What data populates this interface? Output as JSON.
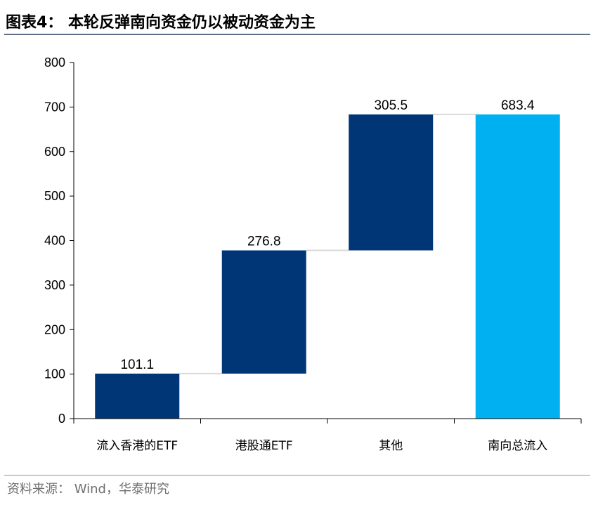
{
  "header": {
    "title": "图表4：  本轮反弹南向资金仍以被动资金为主"
  },
  "footer": {
    "source": "资料来源：  Wind，华泰研究"
  },
  "colors": {
    "dark_bar": "#003676",
    "total_bar": "#00b0f0",
    "connector": "#d9d9d9",
    "axis": "#000000"
  },
  "chart_data": {
    "type": "bar",
    "subtype": "waterfall",
    "title": "本轮反弹南向资金仍以被动资金为主",
    "categories": [
      "流入香港的ETF",
      "港股通ETF",
      "其他",
      "南向总流入"
    ],
    "values": [
      101.1,
      276.8,
      305.5,
      683.4
    ],
    "is_total": [
      false,
      false,
      false,
      true
    ],
    "data_labels": [
      "101.1",
      "276.8",
      "305.5",
      "683.4"
    ],
    "ylim": [
      0,
      800
    ],
    "yticks": [
      0,
      100,
      200,
      300,
      400,
      500,
      600,
      700,
      800
    ],
    "xlabel": "",
    "ylabel": "",
    "grid": false,
    "legend": "none"
  }
}
